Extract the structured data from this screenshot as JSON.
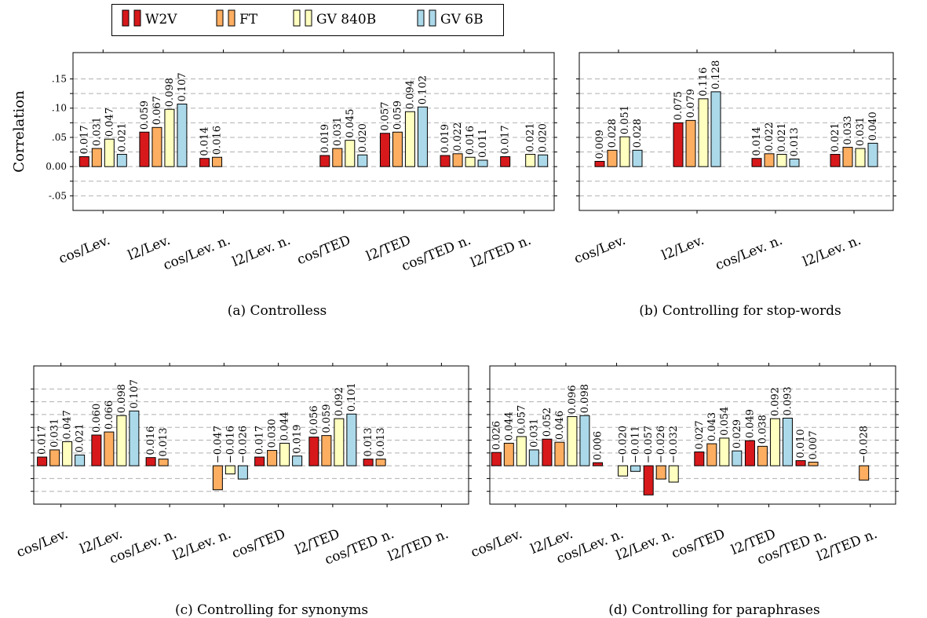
{
  "legend": {
    "entries": [
      {
        "label": "W2V",
        "color": "#d7191c"
      },
      {
        "label": "FT",
        "color": "#fdae61"
      },
      {
        "label": "GV 840B",
        "color": "#ffffbf"
      },
      {
        "label": "GV 6B",
        "color": "#abd9e9"
      }
    ]
  },
  "chart_data": [
    {
      "type": "bar",
      "caption": "(a) Controlless",
      "ylabel": "Correlation",
      "ylim": [
        -0.075,
        0.195
      ],
      "yticks": [
        -0.05,
        0.0,
        0.05,
        0.1,
        0.15
      ],
      "yticklabels": [
        "-.05",
        "0.00",
        ".05",
        ".10",
        ".15"
      ],
      "grid": "dashed-horizontal",
      "categories": [
        "cos/Lev.",
        "l2/Lev.",
        "cos/Lev. n.",
        "l2/Lev. n.",
        "cos/TED",
        "l2/TED",
        "cos/TED n.",
        "l2/TED n."
      ],
      "series": [
        {
          "name": "W2V",
          "values": [
            0.017,
            0.059,
            0.014,
            null,
            0.019,
            0.057,
            0.019,
            0.017
          ],
          "labels": [
            "0.017",
            "0.059",
            "0.014",
            null,
            "0.019",
            "0.057",
            "0.019",
            "0.017"
          ]
        },
        {
          "name": "FT",
          "values": [
            0.031,
            0.067,
            0.016,
            null,
            0.031,
            0.059,
            0.022,
            null
          ],
          "labels": [
            "0.031",
            "0.067",
            "0.016",
            null,
            "0.031",
            "0.059",
            "0.022",
            null
          ]
        },
        {
          "name": "GV 840B",
          "values": [
            0.047,
            0.098,
            null,
            null,
            0.045,
            0.094,
            0.016,
            0.021
          ],
          "labels": [
            "0.047",
            "0.098",
            null,
            null,
            "0.045",
            "0.094",
            "0.016",
            "0.021"
          ]
        },
        {
          "name": "GV 6B",
          "values": [
            0.021,
            0.107,
            null,
            null,
            0.02,
            0.102,
            0.011,
            0.02
          ],
          "labels": [
            "0.021",
            "0.107",
            null,
            null,
            "0.020",
            "0.102",
            "0.011",
            "0.020"
          ]
        }
      ]
    },
    {
      "type": "bar",
      "caption": "(b) Controlling for stop-words",
      "ylim": [
        -0.075,
        0.195
      ],
      "yticks": [
        -0.05,
        0.0,
        0.05,
        0.1,
        0.15
      ],
      "yticklabels": [],
      "grid": "dashed-horizontal",
      "categories": [
        "cos/Lev.",
        "l2/Lev.",
        "cos/Lev. n.",
        "l2/Lev. n."
      ],
      "series": [
        {
          "name": "W2V",
          "values": [
            0.009,
            0.075,
            0.014,
            0.021
          ],
          "labels": [
            "0.009",
            "0.075",
            "0.014",
            "0.021"
          ]
        },
        {
          "name": "FT",
          "values": [
            0.028,
            0.079,
            0.022,
            0.033
          ],
          "labels": [
            "0.028",
            "0.079",
            "0.022",
            "0.033"
          ]
        },
        {
          "name": "GV 840B",
          "values": [
            0.051,
            0.116,
            0.021,
            0.031
          ],
          "labels": [
            "0.051",
            "0.116",
            "0.021",
            "0.031"
          ]
        },
        {
          "name": "GV 6B",
          "values": [
            0.028,
            0.128,
            0.013,
            0.04
          ],
          "labels": [
            "0.028",
            "0.128",
            "0.013",
            "0.040"
          ]
        }
      ]
    },
    {
      "type": "bar",
      "caption": "(c) Controlling for synonyms",
      "ylim": [
        -0.075,
        0.195
      ],
      "yticks": [
        -0.05,
        0.0,
        0.05,
        0.1,
        0.15
      ],
      "yticklabels": [],
      "grid": "dashed-horizontal",
      "categories": [
        "cos/Lev.",
        "l2/Lev.",
        "cos/Lev. n.",
        "l2/Lev. n.",
        "cos/TED",
        "l2/TED",
        "cos/TED n.",
        "l2/TED n."
      ],
      "series": [
        {
          "name": "W2V",
          "values": [
            0.017,
            0.06,
            0.016,
            null,
            0.017,
            0.056,
            0.013,
            null
          ],
          "labels": [
            "0.017",
            "0.060",
            "0.016",
            null,
            "0.017",
            "0.056",
            "0.013",
            null
          ]
        },
        {
          "name": "FT",
          "values": [
            0.031,
            0.066,
            0.013,
            -0.047,
            0.03,
            0.059,
            0.013,
            null
          ],
          "labels": [
            "0.031",
            "0.066",
            "0.013",
            "−0.047",
            "0.030",
            "0.059",
            "0.013",
            null
          ]
        },
        {
          "name": "GV 840B",
          "values": [
            0.047,
            0.098,
            null,
            -0.016,
            0.044,
            0.092,
            null,
            null
          ],
          "labels": [
            "0.047",
            "0.098",
            null,
            "−0.016",
            "0.044",
            "0.092",
            null,
            null
          ]
        },
        {
          "name": "GV 6B",
          "values": [
            0.021,
            0.107,
            null,
            -0.026,
            0.019,
            0.101,
            null,
            null
          ],
          "labels": [
            "0.021",
            "0.107",
            null,
            "−0.026",
            "0.019",
            "0.101",
            null,
            null
          ]
        }
      ]
    },
    {
      "type": "bar",
      "caption": "(d) Controlling for paraphrases",
      "ylim": [
        -0.075,
        0.195
      ],
      "yticks": [
        -0.05,
        0.0,
        0.05,
        0.1,
        0.15
      ],
      "yticklabels": [],
      "grid": "dashed-horizontal",
      "categories": [
        "cos/Lev.",
        "l2/Lev.",
        "cos/Lev. n.",
        "l2/Lev. n.",
        "cos/TED",
        "l2/TED",
        "cos/TED n.",
        "l2/TED n."
      ],
      "series": [
        {
          "name": "W2V",
          "values": [
            0.026,
            0.052,
            0.006,
            -0.057,
            0.027,
            0.049,
            0.01,
            null
          ],
          "labels": [
            "0.026",
            "0.052",
            "0.006",
            "−0.057",
            "0.027",
            "0.049",
            "0.010",
            null
          ]
        },
        {
          "name": "FT",
          "values": [
            0.044,
            0.046,
            null,
            -0.026,
            0.043,
            0.038,
            0.007,
            -0.028
          ],
          "labels": [
            "0.044",
            "0.046",
            null,
            "−0.026",
            "0.043",
            "0.038",
            "0.007",
            "−0.028"
          ]
        },
        {
          "name": "GV 840B",
          "values": [
            0.057,
            0.096,
            -0.02,
            -0.032,
            0.054,
            0.092,
            null,
            null
          ],
          "labels": [
            "0.057",
            "0.096",
            "−0.020",
            "−0.032",
            "0.054",
            "0.092",
            null,
            null
          ]
        },
        {
          "name": "GV 6B",
          "values": [
            0.031,
            0.098,
            -0.011,
            null,
            0.029,
            0.093,
            null,
            null
          ],
          "labels": [
            "0.031",
            "0.098",
            "−0.011",
            null,
            "0.029",
            "0.093",
            null,
            null
          ]
        }
      ]
    }
  ]
}
